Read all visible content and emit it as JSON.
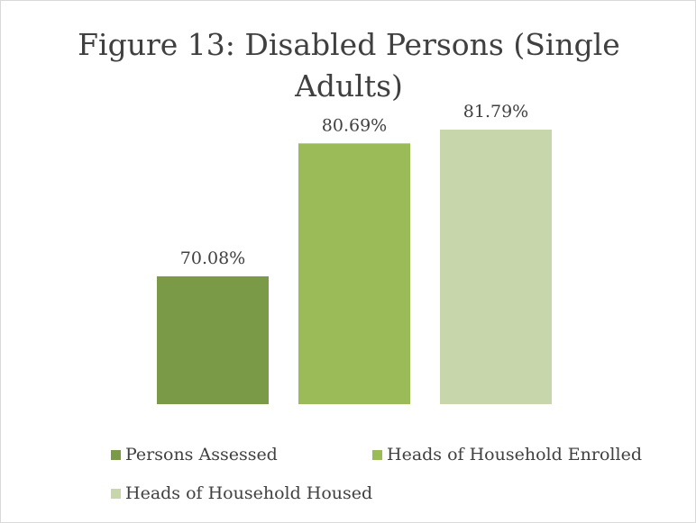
{
  "chart_data": {
    "type": "bar",
    "title": "Figure 13: Disabled Persons (Single Adults)",
    "categories": [
      "Persons Assessed",
      "Heads of Household Enrolled",
      "Heads of Household Housed"
    ],
    "values": [
      70.08,
      80.69,
      81.79
    ],
    "value_labels": [
      "70.08%",
      "80.69%",
      "81.79%"
    ],
    "colors": [
      "#7a9a48",
      "#9bbb59",
      "#c8d6ab"
    ],
    "unit": "%",
    "legend_position": "bottom",
    "grid": false,
    "show_axes": false
  }
}
